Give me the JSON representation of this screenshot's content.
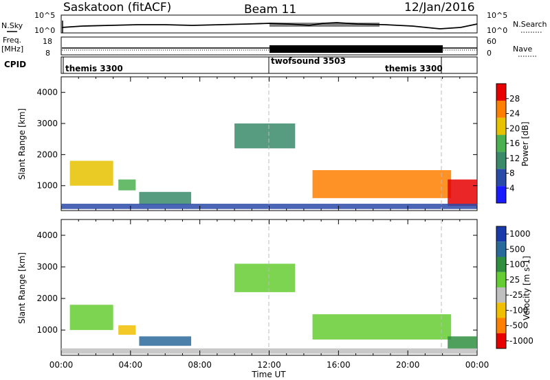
{
  "header": {
    "site": "Saskatoon (fitACF)",
    "beam": "Beam 11",
    "date": "12/Jan/2016"
  },
  "strip1": {
    "left_label": "N.Sky",
    "right_label": "N.Search",
    "left_ticks": [
      "10^5",
      "10^0"
    ],
    "right_ticks": [
      "10^5",
      "10^0"
    ]
  },
  "strip2": {
    "left_label_1": "Freq.",
    "left_label_2": "[MHz]",
    "right_label": "Nave",
    "left_ticks": [
      "18",
      "8"
    ],
    "right_ticks": [
      "60",
      "0"
    ]
  },
  "cpid": {
    "label": "CPID",
    "segments": [
      {
        "name": "themis 3300",
        "start_h": 0,
        "end_h": 12
      },
      {
        "name": "twofsound 3503",
        "start_h": 12,
        "end_h": 22
      },
      {
        "name": "themis 3300",
        "start_h": 22,
        "end_h": 24
      }
    ]
  },
  "chart_data": [
    {
      "type": "heatmap",
      "title": "",
      "ylabel": "Slant Range [km]",
      "xlabel": "",
      "xlim": [
        0,
        24
      ],
      "ylim": [
        200,
        4500
      ],
      "y_ticks": [
        "1000",
        "2000",
        "3000",
        "4000"
      ],
      "colorbar_label": "Power [dB]",
      "colorbar_ticks": [
        "4",
        "8",
        "12",
        "16",
        "20",
        "24",
        "28"
      ],
      "colors": [
        "#1a1aff",
        "#2a4aa8",
        "#3a8a6a",
        "#4caf50",
        "#e6c200",
        "#ff7f00",
        "#e60000"
      ],
      "regions": [
        {
          "x0": 0.5,
          "x1": 3.0,
          "y0": 1000,
          "y1": 1800,
          "level": 5
        },
        {
          "x0": 3.3,
          "x1": 4.3,
          "y0": 850,
          "y1": 1200,
          "level": 4
        },
        {
          "x0": 4.5,
          "x1": 7.5,
          "y0": 400,
          "y1": 800,
          "level": 3
        },
        {
          "x0": 10.0,
          "x1": 13.5,
          "y0": 2200,
          "y1": 3000,
          "level": 3
        },
        {
          "x0": 14.5,
          "x1": 22.5,
          "y0": 600,
          "y1": 1500,
          "level": 6
        },
        {
          "x0": 22.3,
          "x1": 24.0,
          "y0": 350,
          "y1": 1200,
          "level": 7
        },
        {
          "x0": 0.0,
          "x1": 24.0,
          "y0": 250,
          "y1": 420,
          "level": 2
        }
      ]
    },
    {
      "type": "heatmap",
      "title": "",
      "ylabel": "Slant Range [km]",
      "xlabel": "Time UT",
      "xlim": [
        0,
        24
      ],
      "ylim": [
        200,
        4500
      ],
      "x_ticks": [
        "00:00",
        "04:00",
        "08:00",
        "12:00",
        "16:00",
        "20:00",
        "00:00"
      ],
      "y_ticks": [
        "1000",
        "2000",
        "3000",
        "4000"
      ],
      "colorbar_label": "Velocity [m s-1]",
      "colorbar_ticks": [
        "1000",
        "500",
        "100",
        "25",
        "-25",
        "-100",
        "-500",
        "-1000"
      ],
      "colors": [
        "#1a3aaa",
        "#2a6a9a",
        "#2f8f3f",
        "#66cc33",
        "#bfbfbf",
        "#f0c000",
        "#ff7f00",
        "#e60000"
      ],
      "regions": [
        {
          "x0": 0.5,
          "x1": 3.0,
          "y0": 1000,
          "y1": 1800,
          "level": 4
        },
        {
          "x0": 3.3,
          "x1": 4.3,
          "y0": 850,
          "y1": 1150,
          "level": 6
        },
        {
          "x0": 4.5,
          "x1": 7.5,
          "y0": 500,
          "y1": 800,
          "level": 2
        },
        {
          "x0": 10.0,
          "x1": 13.5,
          "y0": 2200,
          "y1": 3100,
          "level": 4
        },
        {
          "x0": 14.5,
          "x1": 22.5,
          "y0": 700,
          "y1": 1500,
          "level": 4
        },
        {
          "x0": 22.3,
          "x1": 24.0,
          "y0": 400,
          "y1": 800,
          "level": 3
        },
        {
          "x0": 0.0,
          "x1": 24.0,
          "y0": 250,
          "y1": 420,
          "level": 5
        }
      ]
    }
  ]
}
